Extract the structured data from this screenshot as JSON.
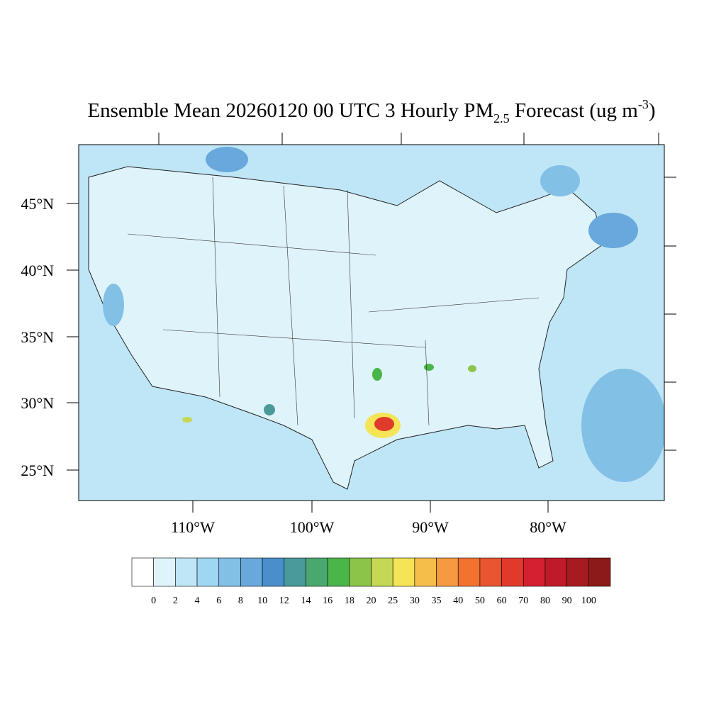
{
  "header": {
    "title_main": "Ensemble Mean 20260120 00 UTC 3 Hourly PM",
    "title_sub": "2.5",
    "title_mid": " Forecast (ug m",
    "title_sup": "-3",
    "title_end": ")"
  },
  "map": {
    "lat_labels": [
      "45°N",
      "40°N",
      "35°N",
      "30°N",
      "25°N"
    ],
    "lon_labels": [
      "110°W",
      "100°W",
      "90°W",
      "80°W"
    ]
  },
  "colorbar": {
    "levels": [
      0,
      2,
      4,
      6,
      8,
      10,
      12,
      14,
      16,
      18,
      20,
      25,
      30,
      35,
      40,
      50,
      60,
      70,
      80,
      90,
      100
    ],
    "colors": [
      "#ffffff",
      "#dff3fb",
      "#bfe6f7",
      "#9fd7f2",
      "#82c0e6",
      "#68a8dc",
      "#4a8fcc",
      "#4a9a9a",
      "#4aa86e",
      "#4ab548",
      "#8cc44a",
      "#c4d856",
      "#f5e456",
      "#f5be4a",
      "#f59a40",
      "#f2722e",
      "#e85530",
      "#e03a2a",
      "#d42030",
      "#bf1a2a",
      "#a61a22",
      "#8c1a1a"
    ]
  }
}
